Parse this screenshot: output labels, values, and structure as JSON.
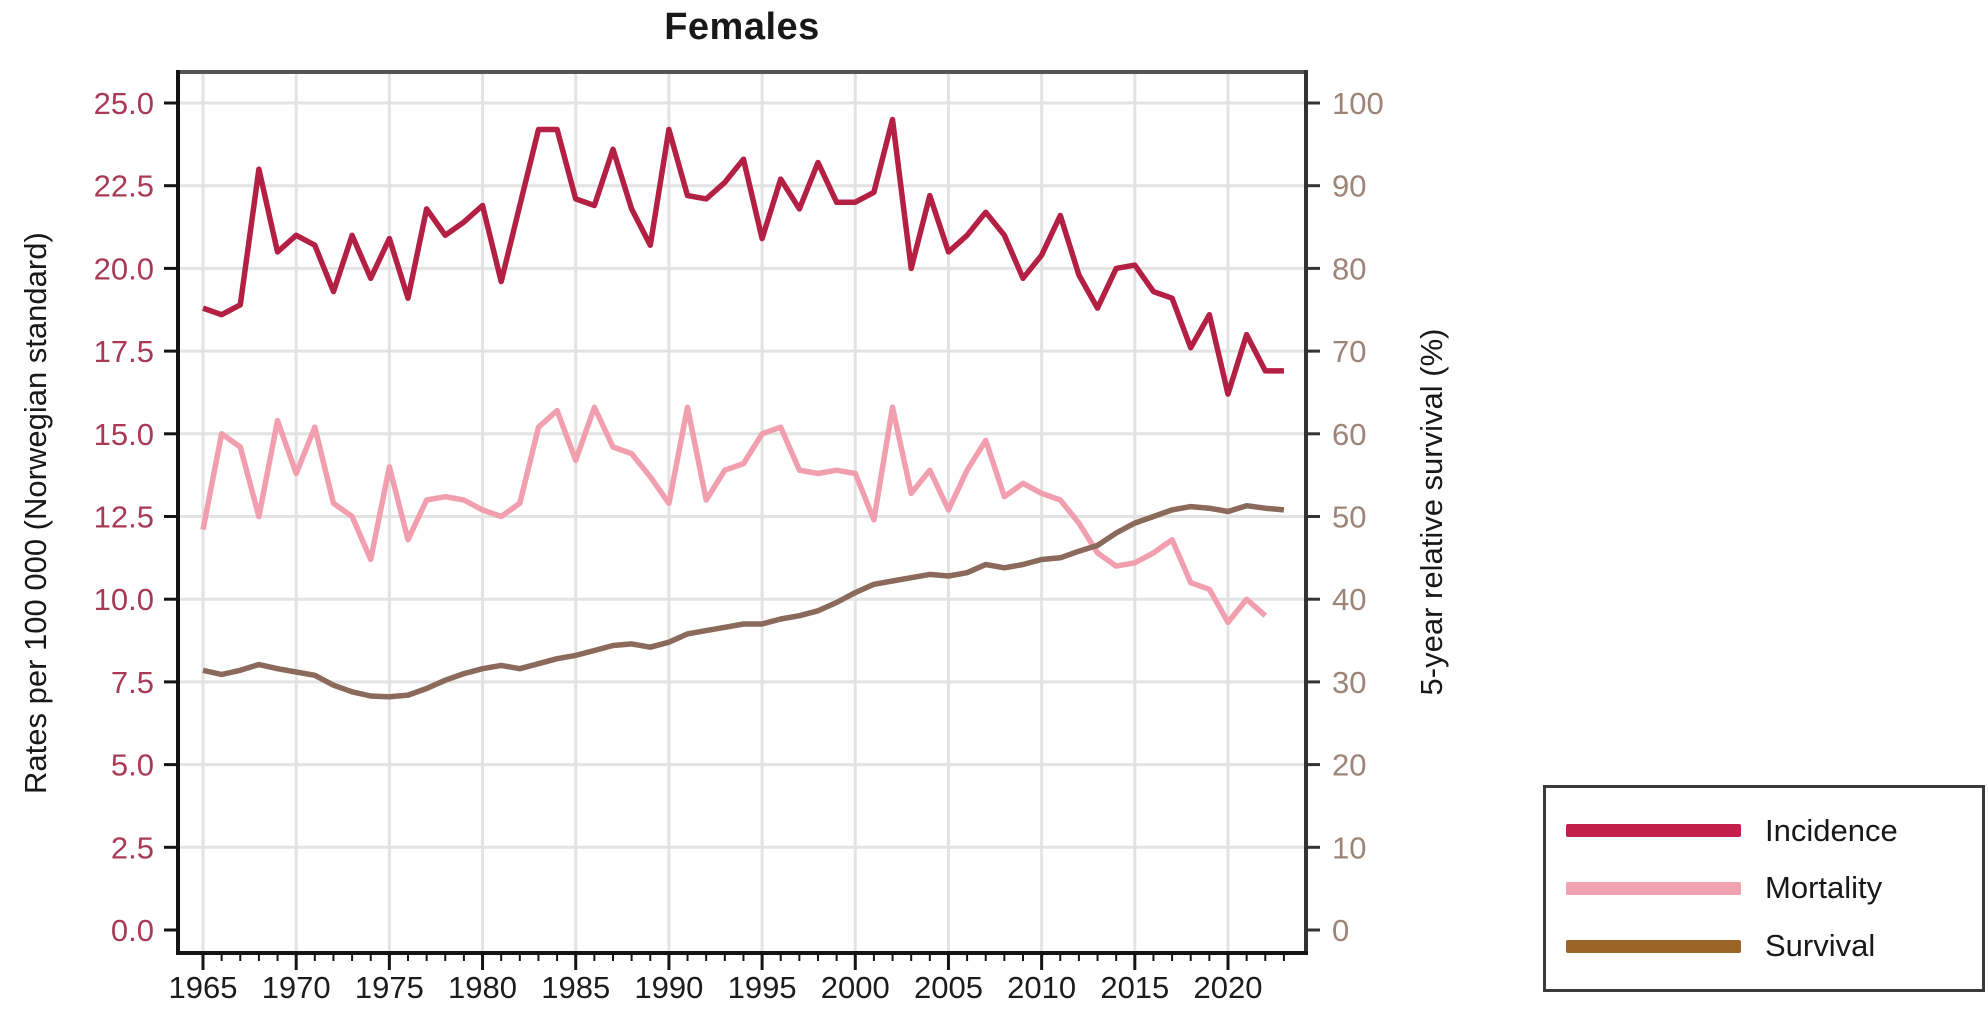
{
  "chart_data": {
    "type": "line",
    "title": "Females",
    "ylabel_left": "Rates per 100 000 (Norwegian standard)",
    "ylabel_right": "5-year relative survival (%)",
    "ylim_left": [
      0,
      25
    ],
    "ylim_right": [
      0,
      100
    ],
    "xlim": [
      1965,
      2023
    ],
    "grid": true,
    "legend_position": "bottom-right-outside",
    "yticks_left": [
      "0.0",
      "2.5",
      "5.0",
      "7.5",
      "10.0",
      "12.5",
      "15.0",
      "17.5",
      "20.0",
      "22.5",
      "25.0"
    ],
    "yticks_right": [
      "0",
      "10",
      "20",
      "30",
      "40",
      "50",
      "60",
      "70",
      "80",
      "90",
      "100"
    ],
    "xticks_major": [
      1965,
      1970,
      1975,
      1980,
      1985,
      1990,
      1995,
      2000,
      2005,
      2010,
      2015,
      2020
    ],
    "x": [
      1965,
      1966,
      1967,
      1968,
      1969,
      1970,
      1971,
      1972,
      1973,
      1974,
      1975,
      1976,
      1977,
      1978,
      1979,
      1980,
      1981,
      1982,
      1983,
      1984,
      1985,
      1986,
      1987,
      1988,
      1989,
      1990,
      1991,
      1992,
      1993,
      1994,
      1995,
      1996,
      1997,
      1998,
      1999,
      2000,
      2001,
      2002,
      2003,
      2004,
      2005,
      2006,
      2007,
      2008,
      2009,
      2010,
      2011,
      2012,
      2013,
      2014,
      2015,
      2016,
      2017,
      2018,
      2019,
      2020,
      2021,
      2022,
      2023
    ],
    "series": [
      {
        "name": "Incidence",
        "axis": "left",
        "color": "#b41f44",
        "legend_color": "#c4204c",
        "values": [
          18.8,
          18.6,
          18.9,
          23.0,
          20.5,
          21.0,
          20.7,
          19.3,
          21.0,
          19.7,
          20.9,
          19.1,
          21.8,
          21.0,
          21.4,
          21.9,
          19.6,
          21.9,
          24.2,
          24.2,
          22.1,
          21.9,
          23.6,
          21.8,
          20.7,
          24.2,
          22.2,
          22.1,
          22.6,
          23.3,
          20.9,
          22.7,
          21.8,
          23.2,
          22.0,
          22.0,
          22.3,
          24.5,
          20.0,
          22.2,
          20.5,
          21.0,
          21.7,
          21.0,
          19.7,
          20.4,
          21.6,
          19.8,
          18.8,
          20.0,
          20.1,
          19.3,
          19.1,
          17.6,
          18.6,
          16.2,
          18.0,
          16.9,
          16.9
        ]
      },
      {
        "name": "Mortality",
        "axis": "left",
        "color": "#f19fae",
        "legend_color": "#f0a2b0",
        "values": [
          12.1,
          15.0,
          14.6,
          12.5,
          15.4,
          13.8,
          15.2,
          12.9,
          12.5,
          11.2,
          14.0,
          11.8,
          13.0,
          13.1,
          13.0,
          12.7,
          12.5,
          12.9,
          15.2,
          15.7,
          14.2,
          15.8,
          14.6,
          14.4,
          13.7,
          12.9,
          15.8,
          13.0,
          13.9,
          14.1,
          15.0,
          15.2,
          13.9,
          13.8,
          13.9,
          13.8,
          12.4,
          15.8,
          13.2,
          13.9,
          12.7,
          13.9,
          14.8,
          13.1,
          13.5,
          13.2,
          13.0,
          12.3,
          11.4,
          11.0,
          11.1,
          11.4,
          11.8,
          10.5,
          10.3,
          9.3,
          10.0,
          9.5,
          null
        ]
      },
      {
        "name": "Survival",
        "axis": "right",
        "color": "#8b6a5b",
        "legend_color": "#9a6526",
        "values": [
          31.4,
          30.9,
          31.4,
          32.1,
          31.6,
          31.2,
          30.8,
          29.6,
          28.8,
          28.3,
          28.2,
          28.4,
          29.2,
          30.2,
          31.0,
          31.6,
          32.0,
          31.6,
          32.2,
          32.8,
          33.2,
          33.8,
          34.4,
          34.6,
          34.2,
          34.8,
          35.8,
          36.2,
          36.6,
          37.0,
          37.0,
          37.6,
          38.0,
          38.6,
          39.6,
          40.8,
          41.8,
          42.2,
          42.6,
          43.0,
          42.8,
          43.2,
          44.2,
          43.8,
          44.2,
          44.8,
          45.0,
          45.8,
          46.5,
          48.0,
          49.2,
          50.0,
          50.8,
          51.2,
          51.0,
          50.6,
          51.3,
          51.0,
          50.8
        ]
      }
    ]
  },
  "colors": {
    "left_tick_labels": "#a93a55",
    "right_tick_labels": "#9c8577",
    "x_tick_labels": "#1c1c1c",
    "grid": "#e3e3e3",
    "axis_left_bottom": "#141414",
    "panel_border_top": "#555555",
    "panel_border_right": "#333333",
    "background": "#ffffff"
  }
}
